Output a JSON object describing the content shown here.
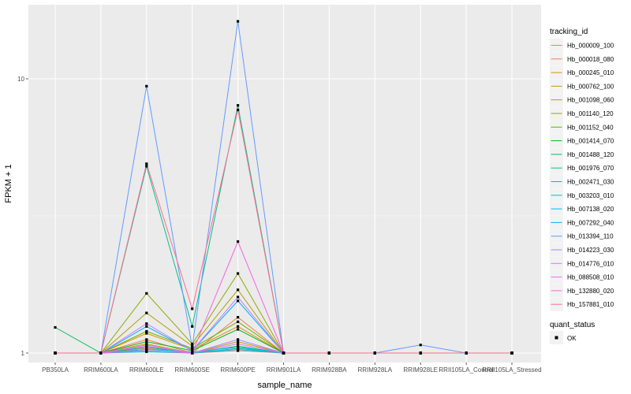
{
  "chart_data": {
    "type": "line",
    "xlabel": "sample_name",
    "ylabel": "FPKM + 1",
    "y_scale": "log10",
    "ylim": [
      0.9,
      20
    ],
    "y_ticks": [
      {
        "value": 1,
        "label": "1"
      },
      {
        "value": 10,
        "label": "10"
      }
    ],
    "categories": [
      "PB350LA",
      "RRIM600LA",
      "RRIM600LE",
      "RRIM600SE",
      "RRIM600PE",
      "RRIM901LA",
      "RRIM928BA",
      "RRIM928LA",
      "RRIM928LE",
      "RRII105LA_Control",
      "RRII105LA_Stressed"
    ],
    "legend_title": "tracking_id",
    "legend2_title": "quant_status",
    "legend2_items": [
      {
        "label": "OK"
      }
    ],
    "background": "#ebebeb",
    "grid": true,
    "legend_position": "right",
    "series": [
      {
        "name": "Hb_000009_100",
        "color": "#F8766D",
        "values": [
          1,
          1,
          1.04,
          1,
          1.02,
          1,
          1,
          1,
          1,
          1,
          1
        ]
      },
      {
        "name": "Hb_000018_080",
        "color": "#EE8044",
        "values": [
          1,
          1,
          1.12,
          1,
          1.35,
          1,
          1,
          1,
          1,
          1,
          1
        ]
      },
      {
        "name": "Hb_000245_010",
        "color": "#DF8D00",
        "values": [
          1,
          1,
          1.18,
          1.03,
          1.25,
          1,
          1,
          1,
          1,
          1,
          1
        ]
      },
      {
        "name": "Hb_000762_100",
        "color": "#C99800",
        "values": [
          1,
          1,
          1.08,
          1,
          1.1,
          1,
          1,
          1,
          1,
          1,
          1
        ]
      },
      {
        "name": "Hb_001098_060",
        "color": "#AFA100",
        "values": [
          1,
          1,
          1.4,
          1.06,
          1.7,
          1,
          1,
          1,
          1,
          1,
          1
        ]
      },
      {
        "name": "Hb_001140_120",
        "color": "#8FAA00",
        "values": [
          1,
          1,
          1.65,
          1.08,
          1.95,
          1,
          1,
          1,
          1,
          1,
          1
        ]
      },
      {
        "name": "Hb_001152_040",
        "color": "#64B200",
        "values": [
          1,
          1,
          1.2,
          1.04,
          1.3,
          1,
          1,
          1,
          1,
          1,
          1
        ]
      },
      {
        "name": "Hb_001414_070",
        "color": "#00B81B",
        "values": [
          1,
          1,
          1.1,
          1.02,
          1.22,
          1,
          1,
          1,
          1,
          1,
          1
        ]
      },
      {
        "name": "Hb_001488_120",
        "color": "#00BD5C",
        "values": [
          1.24,
          1,
          1.05,
          1,
          1.06,
          1,
          1,
          1,
          1,
          1,
          1
        ]
      },
      {
        "name": "Hb_001976_070",
        "color": "#00C08E",
        "values": [
          1,
          1,
          4.8,
          1.25,
          8.0,
          1,
          1,
          1,
          1,
          1,
          1
        ]
      },
      {
        "name": "Hb_002471_030",
        "color": "#00C1B7",
        "values": [
          1,
          1,
          1.02,
          1,
          1.04,
          1,
          1,
          1,
          1,
          1,
          1
        ]
      },
      {
        "name": "Hb_003203_010",
        "color": "#00BFD9",
        "values": [
          1,
          1,
          1.01,
          1,
          1.03,
          1,
          1,
          1,
          1,
          1,
          1
        ]
      },
      {
        "name": "Hb_007138_020",
        "color": "#00BAF4",
        "values": [
          1,
          1,
          1.03,
          1.01,
          1.05,
          1,
          1,
          1,
          1,
          1,
          1
        ]
      },
      {
        "name": "Hb_007292_040",
        "color": "#00B0F6",
        "values": [
          1,
          1,
          1.25,
          1.02,
          1.55,
          1,
          1,
          1,
          1,
          1,
          1
        ]
      },
      {
        "name": "Hb_013394_110",
        "color": "#619CFF",
        "values": [
          1,
          1,
          9.4,
          1.05,
          16.2,
          1,
          1,
          1,
          1.07,
          1,
          1
        ]
      },
      {
        "name": "Hb_014223_030",
        "color": "#9F8CFF",
        "values": [
          1,
          1,
          1.06,
          1,
          1.12,
          1,
          1,
          1,
          1,
          1,
          1
        ]
      },
      {
        "name": "Hb_014776_010",
        "color": "#C77CFF",
        "values": [
          1,
          1,
          1.28,
          1.02,
          1.6,
          1,
          1,
          1,
          1,
          1,
          1
        ]
      },
      {
        "name": "Hb_088508_010",
        "color": "#E56EF3",
        "values": [
          1,
          1,
          1.07,
          1,
          1.08,
          1,
          1,
          1,
          1,
          1,
          1
        ]
      },
      {
        "name": "Hb_132880_020",
        "color": "#F564E3",
        "values": [
          1,
          1,
          1.02,
          1,
          2.55,
          1,
          1,
          1,
          1,
          1,
          1
        ]
      },
      {
        "name": "Hb_157881_010",
        "color": "#FF6C91",
        "values": [
          1,
          1,
          4.9,
          1.45,
          7.7,
          1,
          1,
          1,
          1,
          1,
          1
        ]
      }
    ]
  }
}
